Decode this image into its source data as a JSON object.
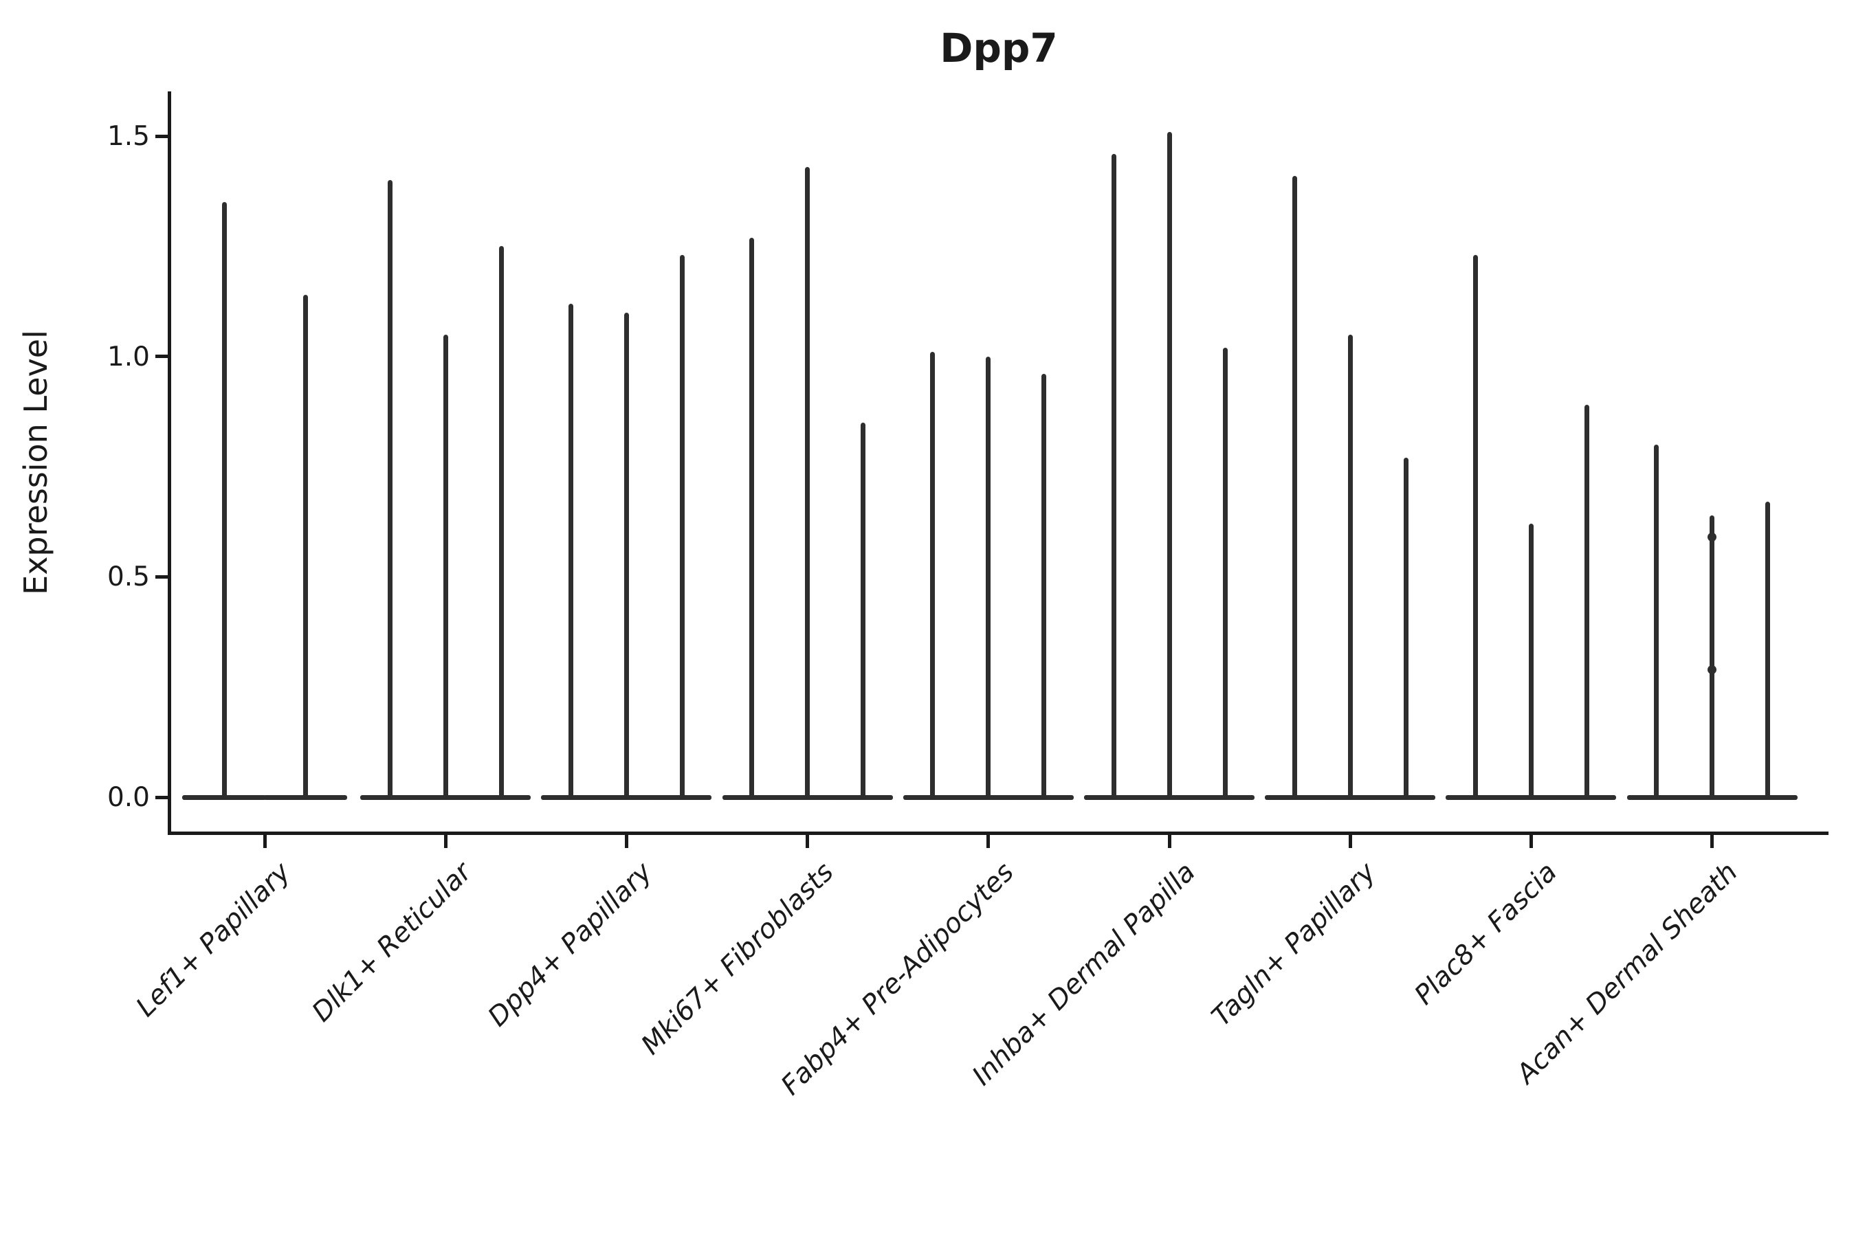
{
  "chart_data": {
    "type": "violin",
    "title": "Dpp7",
    "xlabel": "",
    "ylabel": "Expression Level",
    "yticks": [
      {
        "label": "0.0",
        "value": 0.0
      },
      {
        "label": "0.5",
        "value": 0.5
      },
      {
        "label": "1.0",
        "value": 1.0
      },
      {
        "label": "1.5",
        "value": 1.5
      }
    ],
    "ylim": [
      -0.08,
      1.6
    ],
    "grid": false,
    "legend": null,
    "x_tick_rotation_deg": 45,
    "violin_baseline": 0,
    "groups": [
      {
        "category": "Lef1+ Papillary",
        "violins": [
          {
            "max": 1.35
          },
          {
            "max": 1.14
          }
        ]
      },
      {
        "category": "Dlk1+ Reticular",
        "violins": [
          {
            "max": 1.4
          },
          {
            "max": 1.05
          },
          {
            "max": 1.25
          }
        ]
      },
      {
        "category": "Dpp4+ Papillary",
        "violins": [
          {
            "max": 1.12
          },
          {
            "max": 1.1
          },
          {
            "max": 1.23
          }
        ]
      },
      {
        "category": "Mki67+ Fibroblasts",
        "violins": [
          {
            "max": 1.27
          },
          {
            "max": 1.43
          },
          {
            "max": 0.85
          }
        ]
      },
      {
        "category": "Fabp4+ Pre-Adipocytes",
        "violins": [
          {
            "max": 1.01
          },
          {
            "max": 1.0
          },
          {
            "max": 0.96
          }
        ]
      },
      {
        "category": "Inhba+ Dermal Papilla",
        "violins": [
          {
            "max": 1.46
          },
          {
            "max": 1.51
          },
          {
            "max": 1.02
          }
        ]
      },
      {
        "category": "Tagln+ Papillary",
        "violins": [
          {
            "max": 1.41
          },
          {
            "max": 1.05
          },
          {
            "max": 0.77
          }
        ]
      },
      {
        "category": "Plac8+ Fascia",
        "violins": [
          {
            "max": 1.23
          },
          {
            "max": 0.62
          },
          {
            "max": 0.89
          }
        ]
      },
      {
        "category": "Acan+ Dermal Sheath",
        "violins": [
          {
            "max": 0.8
          },
          {
            "max": 0.64,
            "knots": [
              0.29,
              0.59
            ]
          },
          {
            "max": 0.67
          }
        ]
      }
    ],
    "colors": {
      "ink": "#1a1a1a",
      "violin": "#2e2e2e",
      "background": "#ffffff"
    }
  }
}
